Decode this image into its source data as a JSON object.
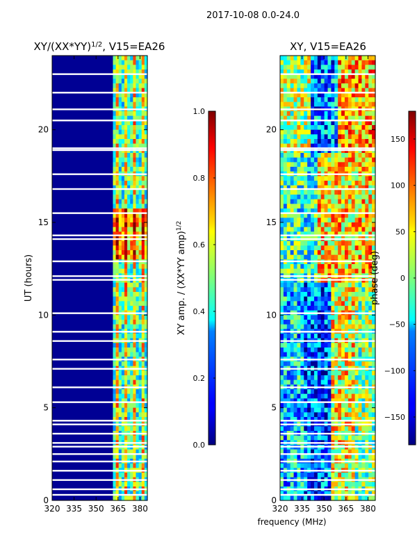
{
  "figure": {
    "suptitle": "2017-10-08 0.0-24.0",
    "xlabel_shared": "frequency (MHz)"
  },
  "chart_data": [
    {
      "type": "heatmap",
      "title": "XY/(XX*YY)",
      "title_superscript": "1/2",
      "title_suffix": ", V15=EA26",
      "ylabel": "UT (hours)",
      "xlabel": "",
      "xlim": [
        320,
        385
      ],
      "ylim": [
        0,
        24
      ],
      "xticks": [
        {
          "v": 320,
          "label": "320"
        },
        {
          "v": 335,
          "label": "335"
        },
        {
          "v": 350,
          "label": "350"
        },
        {
          "v": 365,
          "label": "365"
        },
        {
          "v": 380,
          "label": "380"
        }
      ],
      "yticks": [
        {
          "v": 0,
          "label": "0"
        },
        {
          "v": 5,
          "label": "5"
        },
        {
          "v": 10,
          "label": "10"
        },
        {
          "v": 15,
          "label": "15"
        },
        {
          "v": 20,
          "label": "20"
        }
      ],
      "colormap": "jet",
      "colorbar": {
        "label": "XY amp. / (XX*YY amp)",
        "label_superscript": "1/2",
        "range": [
          0,
          1
        ],
        "ticks": [
          {
            "v": 0,
            "label": "0.0"
          },
          {
            "v": 0.2,
            "label": "0.2"
          },
          {
            "v": 0.4,
            "label": "0.4"
          },
          {
            "v": 0.6,
            "label": "0.6"
          },
          {
            "v": 0.8,
            "label": "0.8"
          },
          {
            "v": 1.0,
            "label": "1.0"
          }
        ]
      },
      "gaps_ut": [
        23.0,
        22.0,
        21.1,
        20.5,
        19.0,
        18.9,
        17.6,
        16.8,
        15.5,
        14.3,
        14.1,
        12.9,
        12.1,
        11.9,
        10.1,
        9.1,
        8.6,
        7.6,
        7.1,
        6.1,
        5.3,
        4.3,
        4.1,
        3.6,
        3.1,
        2.9,
        2.5,
        2.1,
        1.6,
        1.1,
        0.6,
        0.3
      ],
      "regions": [
        {
          "f0": 320,
          "f1": 361.5,
          "value": 0.02,
          "note": "low amplitude (dark blue)"
        },
        {
          "f0": 361.5,
          "f1": 385,
          "value": 0.4,
          "note": "higher amplitude channels"
        }
      ]
    },
    {
      "type": "heatmap",
      "title": "XY, V15=EA26",
      "ylabel": "",
      "xlabel": "frequency (MHz)",
      "xlim": [
        320,
        385
      ],
      "ylim": [
        0,
        24
      ],
      "xticks": [
        {
          "v": 320,
          "label": "320"
        },
        {
          "v": 335,
          "label": "335"
        },
        {
          "v": 350,
          "label": "350"
        },
        {
          "v": 365,
          "label": "365"
        },
        {
          "v": 380,
          "label": "380"
        }
      ],
      "yticks": [
        {
          "v": 0,
          "label": "0"
        },
        {
          "v": 5,
          "label": "5"
        },
        {
          "v": 10,
          "label": "10"
        },
        {
          "v": 15,
          "label": "15"
        },
        {
          "v": 20,
          "label": "20"
        }
      ],
      "colormap": "jet",
      "colorbar": {
        "label": "phase (deg)",
        "range": [
          -180,
          180
        ],
        "ticks": [
          {
            "v": -150,
            "label": "−150"
          },
          {
            "v": -100,
            "label": "−100"
          },
          {
            "v": -50,
            "label": "−50"
          },
          {
            "v": 0,
            "label": "0"
          },
          {
            "v": 50,
            "label": "50"
          },
          {
            "v": 100,
            "label": "100"
          },
          {
            "v": 150,
            "label": "150"
          }
        ]
      },
      "gaps_ut": [
        23.0,
        22.0,
        21.1,
        20.5,
        19.0,
        18.9,
        17.6,
        16.8,
        15.5,
        14.3,
        14.1,
        12.9,
        12.1,
        11.9,
        10.1,
        9.1,
        8.6,
        7.6,
        7.1,
        6.1,
        5.3,
        4.3,
        4.1,
        3.6,
        3.1,
        2.9,
        2.5,
        2.1,
        1.6,
        1.1,
        0.6,
        0.3
      ]
    }
  ]
}
